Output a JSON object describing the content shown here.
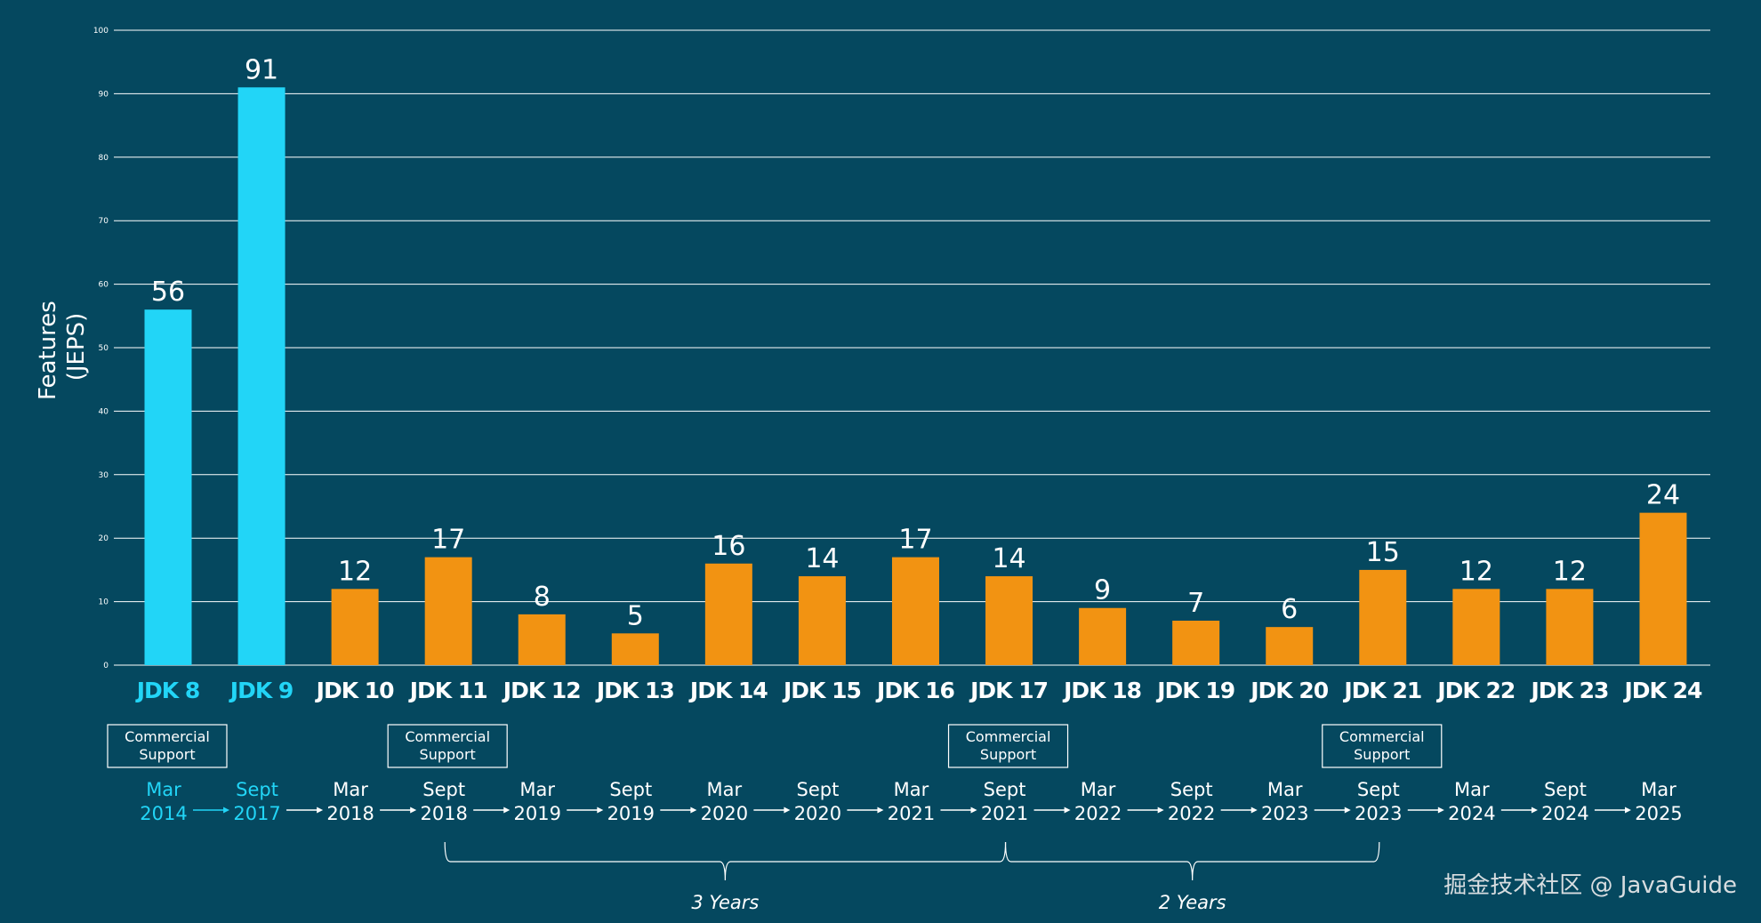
{
  "chart_data": {
    "type": "bar",
    "ylabel": [
      "Features",
      "(JEPS)"
    ],
    "ylim": [
      0,
      100
    ],
    "yticks": [
      0,
      10,
      20,
      30,
      40,
      50,
      60,
      70,
      80,
      90,
      100
    ],
    "grid": true,
    "categories": [
      "JDK 8",
      "JDK 9",
      "JDK 10",
      "JDK 11",
      "JDK 12",
      "JDK 13",
      "JDK 14",
      "JDK 15",
      "JDK 16",
      "JDK 17",
      "JDK 18",
      "JDK 19",
      "JDK 20",
      "JDK 21",
      "JDK 22",
      "JDK 23",
      "JDK 24"
    ],
    "values": [
      56,
      91,
      12,
      17,
      8,
      5,
      16,
      14,
      17,
      14,
      9,
      7,
      6,
      15,
      12,
      12,
      24
    ],
    "bar_colors": [
      "#22d5f7",
      "#22d5f7",
      "#f29312",
      "#f29312",
      "#f29312",
      "#f29312",
      "#f29312",
      "#f29312",
      "#f29312",
      "#f29312",
      "#f29312",
      "#f29312",
      "#f29312",
      "#f29312",
      "#f29312",
      "#f29312",
      "#f29312"
    ],
    "label_colors": [
      "#22d5f7",
      "#22d5f7",
      "#ffffff",
      "#ffffff",
      "#ffffff",
      "#ffffff",
      "#ffffff",
      "#ffffff",
      "#ffffff",
      "#ffffff",
      "#ffffff",
      "#ffffff",
      "#ffffff",
      "#ffffff",
      "#ffffff",
      "#ffffff",
      "#ffffff"
    ],
    "release_dates": [
      [
        "Mar",
        "2014"
      ],
      [
        "Sept",
        "2017"
      ],
      [
        "Mar",
        "2018"
      ],
      [
        "Sept",
        "2018"
      ],
      [
        "Mar",
        "2019"
      ],
      [
        "Sept",
        "2019"
      ],
      [
        "Mar",
        "2020"
      ],
      [
        "Sept",
        "2020"
      ],
      [
        "Mar",
        "2021"
      ],
      [
        "Sept",
        "2021"
      ],
      [
        "Mar",
        "2022"
      ],
      [
        "Sept",
        "2022"
      ],
      [
        "Mar",
        "2023"
      ],
      [
        "Sept",
        "2023"
      ],
      [
        "Mar",
        "2024"
      ],
      [
        "Sept",
        "2024"
      ],
      [
        "Mar",
        "2025"
      ]
    ],
    "commercial_support": {
      "label": [
        "Commercial",
        "Support"
      ],
      "releases": [
        "JDK 8",
        "JDK 11",
        "JDK 17",
        "JDK 21"
      ]
    },
    "spans": [
      {
        "label": "3 Years",
        "from": "JDK 11",
        "to": "JDK 17"
      },
      {
        "label": "2 Years",
        "from": "JDK 17",
        "to": "JDK 21"
      }
    ]
  },
  "colors": {
    "background": "#05485f",
    "legacy": "#22d5f7",
    "new_cadence": "#f29312",
    "grid": "#ffffff"
  },
  "watermark": "掘金技术社区 @ JavaGuide"
}
